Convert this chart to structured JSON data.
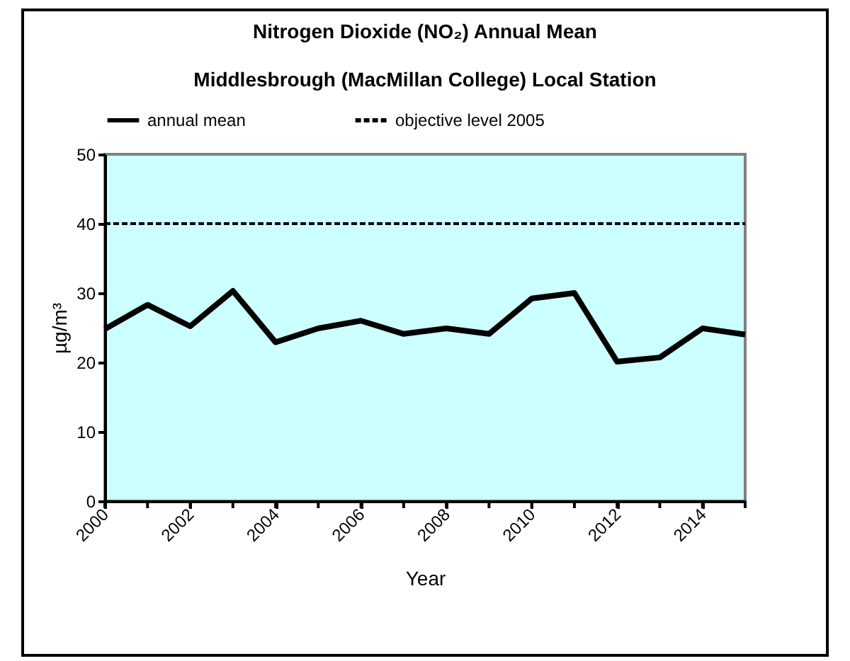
{
  "chart_data": {
    "type": "line",
    "title": "Nitrogen Dioxide (NO₂) Annual Mean",
    "subtitle": "Middlesbrough (MacMillan College) Local Station",
    "xlabel": "Year",
    "ylabel": "µg/m³",
    "x": [
      2000,
      2001,
      2002,
      2003,
      2004,
      2005,
      2006,
      2007,
      2008,
      2009,
      2010,
      2011,
      2012,
      2013,
      2014,
      2015
    ],
    "series": [
      {
        "name": "annual mean",
        "color": "#000000",
        "line_style": "solid",
        "values": [
          24.8,
          28.3,
          25.2,
          30.3,
          22.9,
          24.9,
          26.0,
          24.1,
          24.9,
          24.1,
          29.2,
          30.0,
          20.1,
          20.7,
          24.9,
          24.0
        ]
      },
      {
        "name": "objective level 2005",
        "color": "#000000",
        "line_style": "dashed",
        "values": [
          40,
          40,
          40,
          40,
          40,
          40,
          40,
          40,
          40,
          40,
          40,
          40,
          40,
          40,
          40,
          40
        ]
      }
    ],
    "xlim": [
      2000,
      2015
    ],
    "ylim": [
      0,
      50
    ],
    "xticks": [
      2000,
      {
        "value": 2001,
        "label": null
      },
      2002,
      {
        "value": 2003,
        "label": null
      },
      2004,
      {
        "value": 2005,
        "label": null
      },
      2006,
      {
        "value": 2007,
        "label": null
      },
      2008,
      {
        "value": 2009,
        "label": null
      },
      2010,
      {
        "value": 2011,
        "label": null
      },
      2012,
      {
        "value": 2013,
        "label": null
      },
      2014,
      {
        "value": 2015,
        "label": null
      }
    ],
    "yticks": [
      0,
      10,
      20,
      30,
      40,
      50
    ],
    "grid": false,
    "legend": "top",
    "marker": "none"
  }
}
